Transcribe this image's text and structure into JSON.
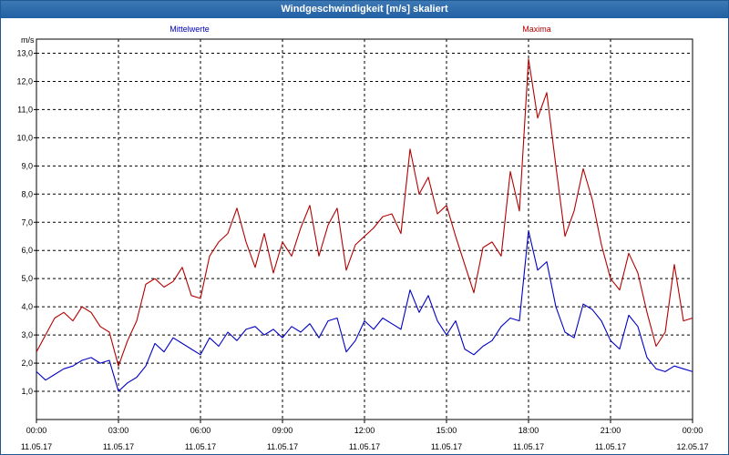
{
  "window": {
    "title": "Windgeschwindigkeit [m/s] skaliert"
  },
  "colors": {
    "mean": "#0000c8",
    "max": "#b40000",
    "axis": "#000000",
    "grid": "#000000",
    "titlebar": "#2b69a8"
  },
  "chart_data": {
    "type": "line",
    "title": "Windgeschwindigkeit [m/s] skaliert",
    "ylabel": "m/s",
    "xlabel": "",
    "ylim": [
      0,
      13.5
    ],
    "xlim": [
      "11.05.17 00:00",
      "12.05.17 00:00"
    ],
    "grid": true,
    "legend_position": "top",
    "y_ticks": [
      "1,0",
      "2,0",
      "3,0",
      "4,0",
      "5,0",
      "6,0",
      "7,0",
      "8,0",
      "9,0",
      "10,0",
      "11,0",
      "12,0",
      "13,0"
    ],
    "x_ticks": [
      {
        "time": "00:00",
        "date": "11.05.17"
      },
      {
        "time": "03:00",
        "date": "11.05.17"
      },
      {
        "time": "06:00",
        "date": "11.05.17"
      },
      {
        "time": "09:00",
        "date": "11.05.17"
      },
      {
        "time": "12:00",
        "date": "11.05.17"
      },
      {
        "time": "15:00",
        "date": "11.05.17"
      },
      {
        "time": "18:00",
        "date": "11.05.17"
      },
      {
        "time": "21:00",
        "date": "11.05.17"
      },
      {
        "time": "00:00",
        "date": "12.05.17"
      }
    ],
    "series": [
      {
        "name": "Mittelwerte",
        "x": [
          "00:00",
          "00:20",
          "00:40",
          "01:00",
          "01:20",
          "01:40",
          "02:00",
          "02:20",
          "02:40",
          "03:00",
          "03:20",
          "03:40",
          "04:00",
          "04:20",
          "04:40",
          "05:00",
          "05:20",
          "05:40",
          "06:00",
          "06:20",
          "06:40",
          "07:00",
          "07:20",
          "07:40",
          "08:00",
          "08:20",
          "08:40",
          "09:00",
          "09:20",
          "09:40",
          "10:00",
          "10:20",
          "10:40",
          "11:00",
          "11:20",
          "11:40",
          "12:00",
          "12:20",
          "12:40",
          "13:00",
          "13:20",
          "13:40",
          "14:00",
          "14:20",
          "14:40",
          "15:00",
          "15:20",
          "15:40",
          "16:00",
          "16:20",
          "16:40",
          "17:00",
          "17:20",
          "17:40",
          "18:00",
          "18:20",
          "18:40",
          "19:00",
          "19:20",
          "19:40",
          "20:00",
          "20:20",
          "20:40",
          "21:00",
          "21:20",
          "21:40",
          "22:00",
          "22:20",
          "22:40",
          "23:00",
          "23:20",
          "23:40",
          "00:00"
        ],
        "values": [
          1.7,
          1.4,
          1.6,
          1.8,
          1.9,
          2.1,
          2.2,
          2.0,
          2.1,
          1.0,
          1.3,
          1.5,
          1.9,
          2.7,
          2.4,
          2.9,
          2.7,
          2.5,
          2.3,
          2.9,
          2.6,
          3.1,
          2.8,
          3.2,
          3.3,
          3.0,
          3.2,
          2.9,
          3.3,
          3.1,
          3.4,
          2.9,
          3.5,
          3.6,
          2.4,
          2.8,
          3.5,
          3.2,
          3.6,
          3.4,
          3.2,
          4.6,
          3.8,
          4.4,
          3.5,
          3.0,
          3.5,
          2.5,
          2.3,
          2.6,
          2.8,
          3.3,
          3.6,
          3.5,
          6.7,
          5.3,
          5.6,
          4.0,
          3.1,
          2.9,
          4.1,
          3.9,
          3.5,
          2.8,
          2.5,
          3.7,
          3.3,
          2.2,
          1.8,
          1.7,
          1.9,
          1.8,
          1.7
        ]
      },
      {
        "name": "Maxima",
        "x": [
          "00:00",
          "00:20",
          "00:40",
          "01:00",
          "01:20",
          "01:40",
          "02:00",
          "02:20",
          "02:40",
          "03:00",
          "03:20",
          "03:40",
          "04:00",
          "04:20",
          "04:40",
          "05:00",
          "05:20",
          "05:40",
          "06:00",
          "06:20",
          "06:40",
          "07:00",
          "07:20",
          "07:40",
          "08:00",
          "08:20",
          "08:40",
          "09:00",
          "09:20",
          "09:40",
          "10:00",
          "10:20",
          "10:40",
          "11:00",
          "11:20",
          "11:40",
          "12:00",
          "12:20",
          "12:40",
          "13:00",
          "13:20",
          "13:40",
          "14:00",
          "14:20",
          "14:40",
          "15:00",
          "15:20",
          "15:40",
          "16:00",
          "16:20",
          "16:40",
          "17:00",
          "17:20",
          "17:40",
          "18:00",
          "18:20",
          "18:40",
          "19:00",
          "19:20",
          "19:40",
          "20:00",
          "20:20",
          "20:40",
          "21:00",
          "21:20",
          "21:40",
          "22:00",
          "22:20",
          "22:40",
          "23:00",
          "23:20",
          "23:40",
          "00:00"
        ],
        "values": [
          2.4,
          3.0,
          3.6,
          3.8,
          3.5,
          4.0,
          3.8,
          3.3,
          3.1,
          1.9,
          2.8,
          3.5,
          4.8,
          5.0,
          4.7,
          4.9,
          5.4,
          4.4,
          4.3,
          5.8,
          6.3,
          6.6,
          7.5,
          6.3,
          5.4,
          6.6,
          5.2,
          6.3,
          5.8,
          6.8,
          7.6,
          5.8,
          6.9,
          7.5,
          5.3,
          6.2,
          6.5,
          6.8,
          7.2,
          7.3,
          6.6,
          9.6,
          8.0,
          8.6,
          7.3,
          7.6,
          6.5,
          5.5,
          4.5,
          6.1,
          6.3,
          5.8,
          8.8,
          7.4,
          12.8,
          10.7,
          11.6,
          9.0,
          6.5,
          7.4,
          8.9,
          7.8,
          6.2,
          5.0,
          4.6,
          5.9,
          5.2,
          3.8,
          2.6,
          3.1,
          5.5,
          3.5,
          3.6
        ]
      }
    ]
  }
}
